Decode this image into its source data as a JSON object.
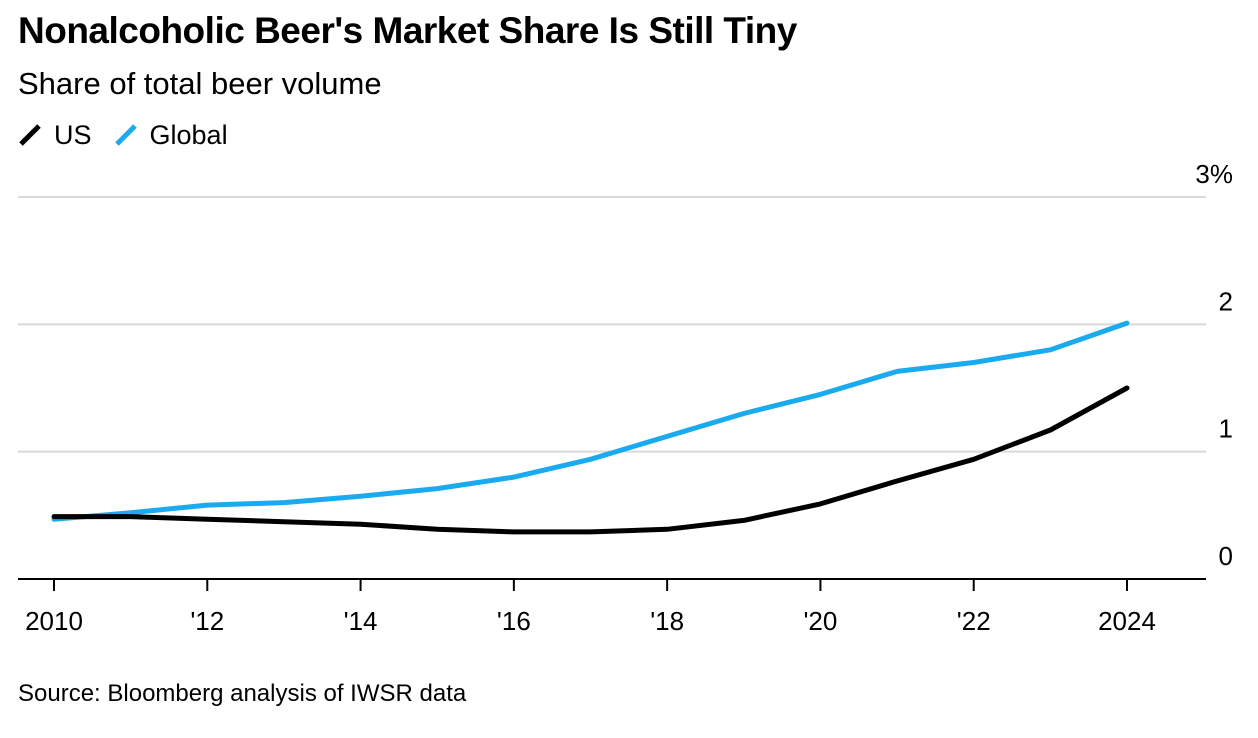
{
  "chart_data": {
    "type": "line",
    "title": "Nonalcoholic Beer's Market Share Is Still Tiny",
    "subtitle": "Share of total beer volume",
    "x": [
      2010,
      2011,
      2012,
      2013,
      2014,
      2015,
      2016,
      2017,
      2018,
      2019,
      2020,
      2021,
      2022,
      2023,
      2024
    ],
    "x_tick_values": [
      2010,
      2012,
      2014,
      2016,
      2018,
      2020,
      2022,
      2024
    ],
    "x_tick_labels": [
      "2010",
      "'12",
      "'14",
      "'16",
      "'18",
      "'20",
      "'22",
      "2024"
    ],
    "y_tick_values": [
      0,
      1,
      2,
      3
    ],
    "y_tick_labels": [
      "0",
      "1",
      "2",
      "3%"
    ],
    "ylim": [
      0,
      3
    ],
    "xlabel": "",
    "ylabel": "",
    "grid": true,
    "legend_position": "top-left",
    "series": [
      {
        "name": "US",
        "color": "#000000",
        "values": [
          0.49,
          0.49,
          0.47,
          0.45,
          0.43,
          0.39,
          0.37,
          0.37,
          0.39,
          0.46,
          0.59,
          0.77,
          0.94,
          1.17,
          1.5
        ]
      },
      {
        "name": "Global",
        "color": "#1aaaf0",
        "values": [
          0.47,
          0.52,
          0.58,
          0.6,
          0.65,
          0.71,
          0.8,
          0.94,
          1.12,
          1.3,
          1.45,
          1.63,
          1.7,
          1.8,
          2.01
        ]
      }
    ],
    "source": "Source: Bloomberg analysis of IWSR data"
  }
}
